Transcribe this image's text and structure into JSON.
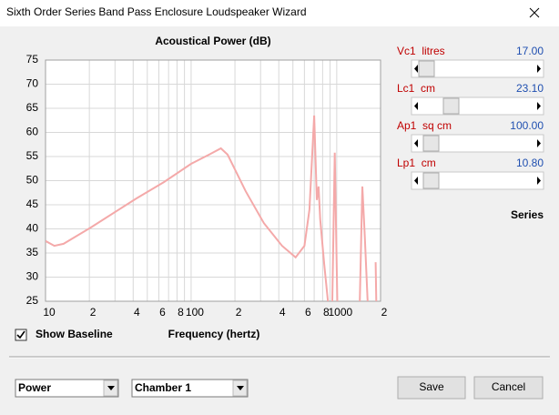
{
  "window": {
    "title": "Sixth Order Series Band Pass Enclosure Loudspeaker Wizard"
  },
  "sliders": [
    {
      "label": "Vc1  litres",
      "value": "17.00"
    },
    {
      "label": "Lc1  cm",
      "value": "23.10"
    },
    {
      "label": "Ap1  sq cm",
      "value": "100.00"
    },
    {
      "label": "Lp1  cm",
      "value": "10.80"
    }
  ],
  "series_label": "Series",
  "show_baseline": {
    "label": "Show Baseline",
    "checked": true
  },
  "dropdowns": [
    "Power",
    "Chamber 1"
  ],
  "buttons": [
    "Save",
    "Cancel"
  ],
  "chart_data": {
    "type": "line",
    "title": "Acoustical Power (dB)",
    "x_label": "Frequency (hertz)",
    "x": [
      10,
      11.5,
      13.3,
      20.5,
      42,
      65,
      100,
      133,
      160,
      178,
      237,
      316,
      421,
      522,
      600,
      650,
      700,
      730,
      750,
      770,
      820,
      870,
      900,
      933,
      970,
      1010,
      1200,
      1440,
      1500,
      1560,
      1630,
      1700,
      1850,
      1870
    ],
    "series": [
      {
        "color": "#f4a9a9",
        "values": [
          37.5,
          36.5,
          36.9,
          40.3,
          46.3,
          49.7,
          53.5,
          55.4,
          56.7,
          55.4,
          47.8,
          41.2,
          36.5,
          34.1,
          36.5,
          44,
          63.5,
          46,
          48.8,
          42,
          32.7,
          25,
          null,
          25,
          55.8,
          25,
          null,
          25,
          48.8,
          38.4,
          25,
          null,
          33.1,
          25
        ]
      }
    ],
    "xlim": [
      10,
      2000
    ],
    "ylim": [
      25,
      75
    ],
    "log_x": true,
    "grid": true,
    "yticks": [
      25,
      30,
      35,
      40,
      45,
      50,
      55,
      60,
      65,
      70,
      75
    ],
    "xticks": [
      10,
      {
        "value": 20,
        "label": "2"
      },
      {
        "value": 40,
        "label": "4"
      },
      {
        "value": 60,
        "label": "6"
      },
      {
        "value": 80,
        "label": "8"
      },
      100,
      {
        "value": 200,
        "label": "2"
      },
      {
        "value": 400,
        "label": "4"
      },
      {
        "value": 600,
        "label": "6"
      },
      {
        "value": 800,
        "label": "8"
      },
      1000,
      {
        "value": 2000,
        "label": "2"
      }
    ],
    "xminor": [
      30,
      50,
      70,
      90,
      300,
      500,
      700,
      900
    ]
  }
}
